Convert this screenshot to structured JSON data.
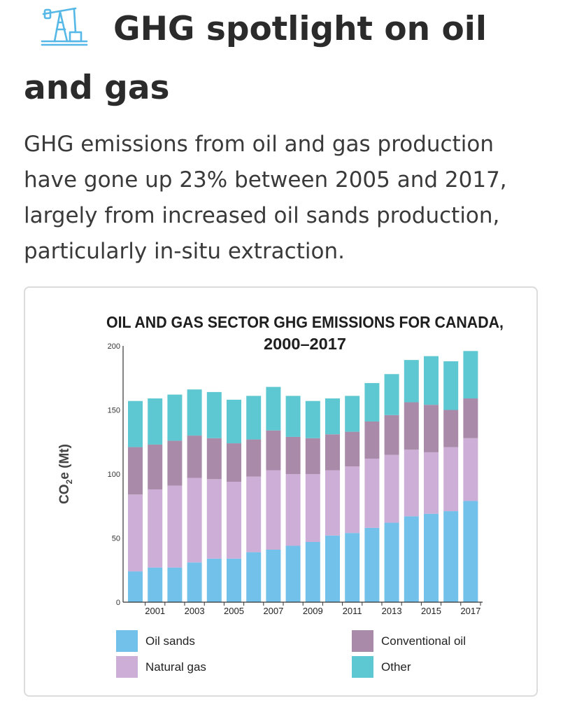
{
  "page": {
    "icon": "oil-pump-icon",
    "heading_line1": "GHG spotlight on oil",
    "heading_line2": "and gas",
    "description_lines": [
      "GHG emissions from oil and gas production",
      "have gone up 23% between 2005 and 2017,",
      "largely from increased oil sands production,",
      "particularly in-situ extraction."
    ],
    "colors": {
      "icon": "#55b8e6",
      "text": "#2b2b2b"
    }
  },
  "chart_data": {
    "type": "bar",
    "stacked": true,
    "title_lines": [
      "OIL AND GAS SECTOR GHG EMISSIONS FOR CANADA,",
      "2000–2017"
    ],
    "ylabel": "CO2e (Mt)",
    "ylabel_main": "CO",
    "ylabel_sub": "2",
    "ylabel_rest": "e (Mt)",
    "ylim": [
      0,
      200
    ],
    "yticks": [
      "0",
      "50",
      "100",
      "150",
      "200"
    ],
    "ytick_values": [
      0,
      50,
      100,
      150,
      200
    ],
    "categories": [
      "2000",
      "2001",
      "2002",
      "2003",
      "2004",
      "2005",
      "2006",
      "2007",
      "2008",
      "2009",
      "2010",
      "2011",
      "2012",
      "2013",
      "2014",
      "2015",
      "2016",
      "2017"
    ],
    "xtick_labels": [
      "",
      "2001",
      "",
      "2003",
      "",
      "2005",
      "",
      "2007",
      "",
      "2009",
      "",
      "2011",
      "",
      "2013",
      "",
      "2015",
      "",
      "2017"
    ],
    "series": [
      {
        "name": "Oil sands",
        "color": "#72c1ea",
        "values": [
          24,
          27,
          27,
          31,
          34,
          34,
          39,
          41,
          44,
          47,
          52,
          54,
          58,
          62,
          67,
          69,
          71,
          79
        ]
      },
      {
        "name": "Natural gas",
        "color": "#cdaed6",
        "values": [
          60,
          61,
          64,
          66,
          62,
          60,
          59,
          62,
          56,
          53,
          51,
          52,
          54,
          53,
          52,
          48,
          50,
          49
        ]
      },
      {
        "name": "Conventional oil",
        "color": "#a98aa8",
        "values": [
          37,
          35,
          35,
          33,
          32,
          30,
          29,
          31,
          29,
          28,
          28,
          27,
          29,
          31,
          37,
          37,
          29,
          31
        ]
      },
      {
        "name": "Other",
        "color": "#5ec8d2",
        "values": [
          36,
          36,
          36,
          36,
          36,
          34,
          34,
          34,
          32,
          29,
          28,
          28,
          30,
          32,
          33,
          38,
          38,
          37
        ]
      }
    ],
    "legend_layout": "bottom, two columns",
    "grid": false
  }
}
